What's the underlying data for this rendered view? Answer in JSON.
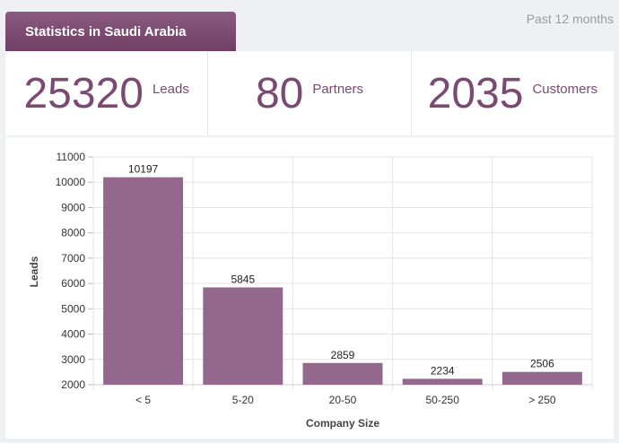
{
  "header": {
    "tab_label": "Statistics in Saudi Arabia",
    "period_label": "Past 12 months"
  },
  "stats": [
    {
      "value": "25320",
      "label": "Leads"
    },
    {
      "value": "80",
      "label": "Partners"
    },
    {
      "value": "2035",
      "label": "Customers"
    }
  ],
  "colors": {
    "accent": "#7a4a72",
    "bar": "#94688c"
  },
  "chart_data": {
    "type": "bar",
    "categories": [
      "< 5",
      "5-20",
      "20-50",
      "50-250",
      "> 250"
    ],
    "values": [
      10197,
      5845,
      2859,
      2234,
      2506
    ],
    "value_labels": [
      "10197",
      "5845",
      "2859",
      "2234",
      "2506"
    ],
    "xlabel": "Company Size",
    "ylabel": "Leads",
    "ylim": [
      2000,
      11000
    ],
    "yticks": [
      2000,
      3000,
      4000,
      5000,
      6000,
      7000,
      8000,
      9000,
      10000,
      11000
    ],
    "ytick_labels": [
      "2000",
      "3000",
      "4000",
      "5000",
      "6000",
      "7000",
      "8000",
      "9000",
      "10000",
      "11000"
    ],
    "grid": true,
    "legend": "none"
  }
}
